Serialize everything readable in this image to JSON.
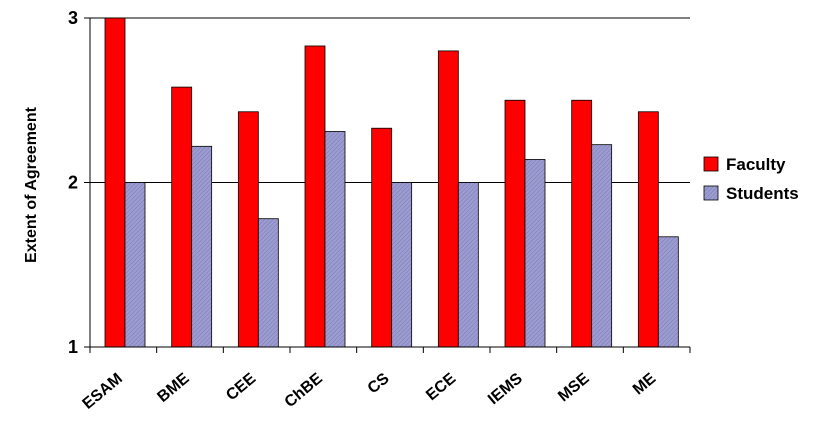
{
  "chart_data": {
    "type": "bar",
    "ylabel": "Extent of Agreement",
    "xlabel": "",
    "ylim": [
      1,
      3
    ],
    "yticks": [
      1,
      2,
      3
    ],
    "grid": true,
    "legend_position": "right",
    "categories": [
      "ESAM",
      "BME",
      "CEE",
      "ChBE",
      "CS",
      "ECE",
      "IEMS",
      "MSE",
      "ME"
    ],
    "series": [
      {
        "name": "Faculty",
        "color": "#ff0000",
        "values": [
          3.0,
          2.58,
          2.43,
          2.83,
          2.33,
          2.8,
          2.5,
          2.5,
          2.43
        ]
      },
      {
        "name": "Students",
        "color": "#9999cc",
        "values": [
          2.0,
          2.22,
          1.78,
          2.31,
          2.0,
          2.0,
          2.14,
          2.23,
          1.67
        ]
      }
    ]
  }
}
